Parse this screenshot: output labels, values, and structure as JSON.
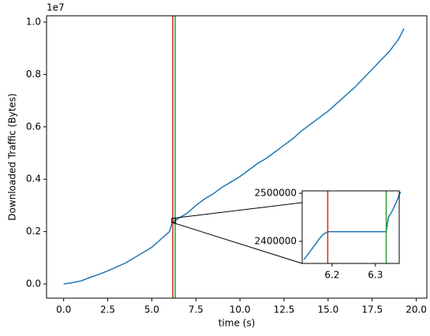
{
  "chart_data": {
    "type": "line",
    "ylabel": "Downloaded Traffic (Bytes)",
    "xlabel": "time (s)",
    "y_offset_label": "1e7",
    "x": [
      0,
      0.5,
      1,
      1.5,
      2,
      2.5,
      3,
      3.5,
      4,
      4.5,
      5,
      5.5,
      6,
      6.19,
      6.325,
      6.5,
      7,
      7.5,
      8,
      8.5,
      9,
      9.5,
      10,
      10.5,
      11,
      11.5,
      12,
      12.5,
      13,
      13.5,
      14,
      14.5,
      15,
      15.5,
      16,
      16.5,
      17,
      17.5,
      18,
      18.5,
      19,
      19.3
    ],
    "series": [
      {
        "color": "#1f77b4",
        "values": [
          0,
          0.005,
          0.012,
          0.025,
          0.037,
          0.05,
          0.065,
          0.08,
          0.1,
          0.12,
          0.14,
          0.17,
          0.2,
          0.242,
          0.242,
          0.25,
          0.27,
          0.3,
          0.325,
          0.345,
          0.37,
          0.39,
          0.41,
          0.435,
          0.46,
          0.48,
          0.505,
          0.53,
          0.555,
          0.585,
          0.61,
          0.635,
          0.66,
          0.69,
          0.72,
          0.75,
          0.785,
          0.82,
          0.855,
          0.89,
          0.935,
          0.975
        ]
      }
    ],
    "vlines": [
      {
        "x": 6.19,
        "color": "#d62728"
      },
      {
        "x": 6.325,
        "color": "#2ca02c"
      }
    ],
    "xlim": [
      -0.97,
      20.6
    ],
    "xticks": [
      {
        "value": 0,
        "label": "0.0"
      },
      {
        "value": 2.5,
        "label": "2.5"
      },
      {
        "value": 5,
        "label": "5.0"
      },
      {
        "value": 7.5,
        "label": "7.5"
      },
      {
        "value": 10,
        "label": "10.0"
      },
      {
        "value": 12.5,
        "label": "12.5"
      },
      {
        "value": 15,
        "label": "15.0"
      },
      {
        "value": 17.5,
        "label": "17.5"
      },
      {
        "value": 20,
        "label": "20.0"
      }
    ],
    "ylim": [
      -0.054,
      1.024
    ],
    "yticks": [
      {
        "value": 0,
        "label": "0.0"
      },
      0.2,
      0.4,
      0.6,
      0.8,
      {
        "value": 1,
        "label": "1.0"
      }
    ],
    "inset": {
      "x": [
        6.135,
        6.14,
        6.15,
        6.16,
        6.17,
        6.18,
        6.19,
        6.25,
        6.325,
        6.33,
        6.34,
        6.35,
        6.358
      ],
      "values": [
        2362000,
        2368000,
        2380000,
        2392000,
        2405000,
        2415000,
        2420000,
        2420000,
        2420000,
        2450000,
        2465000,
        2485000,
        2503000
      ],
      "xlim": [
        6.131,
        6.355
      ],
      "xticks": [
        6.2,
        6.3
      ],
      "ylim": [
        2354100,
        2504900
      ],
      "yticks": [
        2400000,
        2500000
      ]
    }
  }
}
